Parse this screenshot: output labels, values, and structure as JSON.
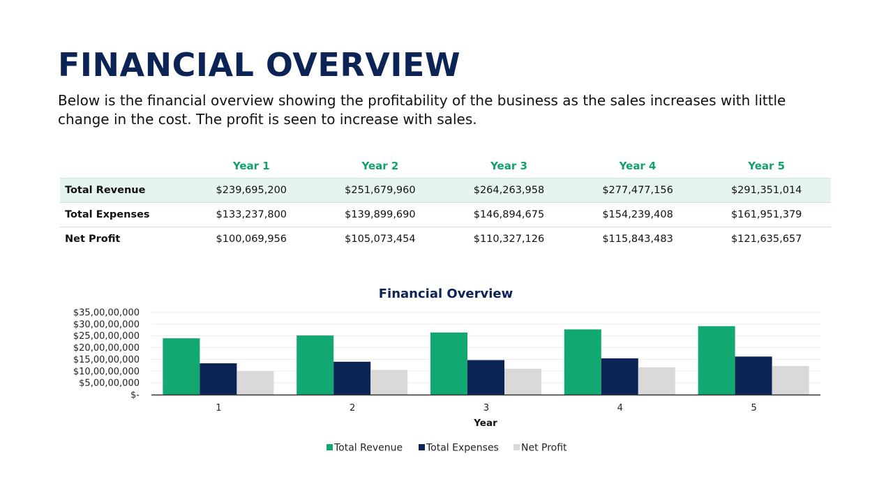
{
  "page": {
    "title": "FINANCIAL OVERVIEW",
    "description": "Below is the financial overview showing the profitability of the business as the sales increases with little change in the cost. The profit is seen to increase with sales."
  },
  "table": {
    "headers": [
      "Year 1",
      "Year 2",
      "Year 3",
      "Year 4",
      "Year 5"
    ],
    "rows": [
      {
        "label": "Total Revenue",
        "cells": [
          "$239,695,200",
          "$251,679,960",
          "$264,263,958",
          "$277,477,156",
          "$291,351,014"
        ]
      },
      {
        "label": "Total Expenses",
        "cells": [
          "$133,237,800",
          "$139,899,690",
          "$146,894,675",
          "$154,239,408",
          "$161,951,379"
        ]
      },
      {
        "label": "Net Profit",
        "cells": [
          "$100,069,956",
          "$105,073,454",
          "$110,327,126",
          "$115,843,483",
          "$121,635,657"
        ]
      }
    ]
  },
  "colors": {
    "title": "#0c2455",
    "header_text": "#12a06b",
    "highlight_row": "#e5f4ec"
  },
  "chart_data": {
    "type": "bar",
    "title": "Financial Overview",
    "xlabel": "Year",
    "ylabel": "",
    "categories": [
      "1",
      "2",
      "3",
      "4",
      "5"
    ],
    "series": [
      {
        "name": "Total Revenue",
        "color": "#12a872",
        "values": [
          239695200,
          251679960,
          264263958,
          277477156,
          291351014
        ]
      },
      {
        "name": "Total Expenses",
        "color": "#0c2455",
        "values": [
          133237800,
          139899690,
          146894675,
          154239408,
          161951379
        ]
      },
      {
        "name": "Net Profit",
        "color": "#d9d9d9",
        "values": [
          100069956,
          105073454,
          110327126,
          115843483,
          121635657
        ]
      }
    ],
    "ylim": [
      0,
      350000000
    ],
    "y_ticks": [
      {
        "value": 350000000,
        "label": "$35,00,00,000"
      },
      {
        "value": 300000000,
        "label": "$30,00,00,000"
      },
      {
        "value": 250000000,
        "label": "$25,00,00,000"
      },
      {
        "value": 200000000,
        "label": "$20,00,00,000"
      },
      {
        "value": 150000000,
        "label": "$15,00,00,000"
      },
      {
        "value": 100000000,
        "label": "$10,00,00,000"
      },
      {
        "value": 50000000,
        "label": "$5,00,00,000"
      },
      {
        "value": 0,
        "label": "$-"
      }
    ],
    "grid": true,
    "legend_position": "bottom"
  }
}
